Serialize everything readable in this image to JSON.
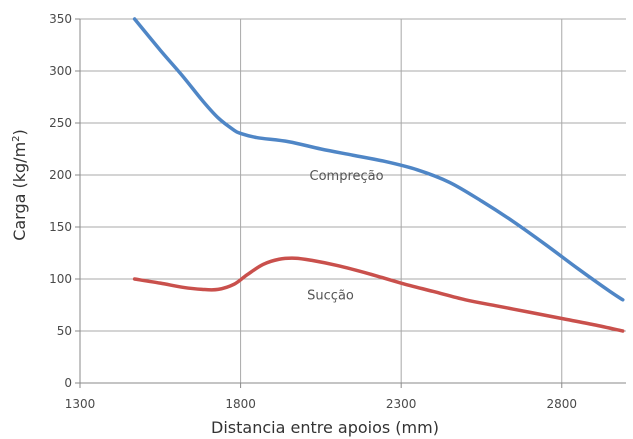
{
  "chart_data": {
    "type": "line",
    "xlabel": "Distancia entre apoios (mm)",
    "ylabel_main": "Carga (kg/m",
    "ylabel_sup": "2",
    "ylabel_close": ")",
    "xlim": [
      1300,
      3000
    ],
    "ylim": [
      0,
      350
    ],
    "xticks": [
      1300,
      1800,
      2300,
      2800
    ],
    "yticks": [
      0,
      50,
      100,
      150,
      200,
      250,
      300,
      350
    ],
    "grid": true,
    "series": [
      {
        "name": "Compreção",
        "color": "#4f86c6",
        "x": [
          1470,
          1550,
          1620,
          1680,
          1730,
          1780,
          1800,
          1850,
          1950,
          2050,
          2150,
          2250,
          2350,
          2450,
          2550,
          2650,
          2750,
          2850,
          2950,
          2990
        ],
        "y": [
          350,
          320,
          295,
          272,
          255,
          243,
          240,
          236,
          232,
          225,
          219,
          213,
          205,
          193,
          175,
          155,
          133,
          110,
          88,
          80
        ]
      },
      {
        "name": "Sucção",
        "color": "#c9504c",
        "x": [
          1470,
          1550,
          1620,
          1680,
          1730,
          1780,
          1820,
          1870,
          1920,
          1970,
          2020,
          2100,
          2200,
          2300,
          2400,
          2500,
          2600,
          2700,
          2800,
          2900,
          2990
        ],
        "y": [
          100,
          96,
          92,
          90,
          90,
          95,
          104,
          114,
          119,
          120,
          118,
          113,
          105,
          96,
          88,
          80,
          74,
          68,
          62,
          56,
          50
        ]
      }
    ]
  }
}
